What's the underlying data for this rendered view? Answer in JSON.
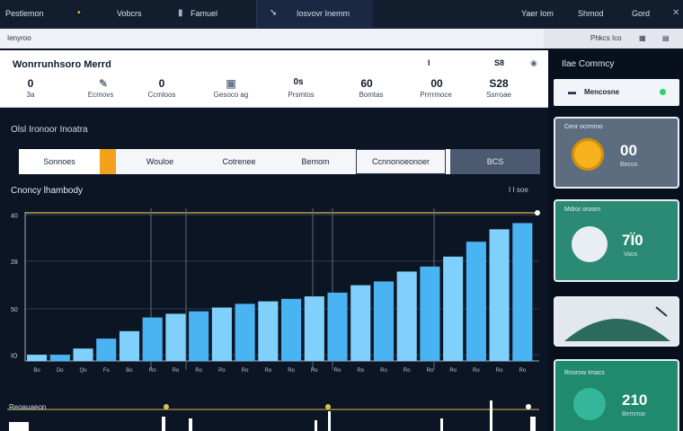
{
  "topbar": {
    "items": [
      {
        "label": "Pestlemon"
      },
      {
        "label": "Vobcrs"
      },
      {
        "label": "Famuel"
      },
      {
        "label": "Iosvovr Inemm"
      },
      {
        "label": "Yaer Iom"
      },
      {
        "label": "Shmod"
      },
      {
        "label": "Gord"
      }
    ]
  },
  "toolbar": {
    "left_label": "Ienyroo",
    "right_label": "Phkcs Ico"
  },
  "summary": {
    "title": "Wonrrunhsoro Merrd",
    "top_value_1": "I",
    "top_value_2": "S8",
    "stats": [
      {
        "value": "0",
        "label": "3a"
      },
      {
        "value": "",
        "label": "Ecmovs"
      },
      {
        "value": "0",
        "label": "Ccmloos"
      },
      {
        "value": "",
        "label": "Gesoco ag"
      },
      {
        "value": "0s",
        "label": "Prsmtos"
      },
      {
        "value": "60",
        "label": "Bomtas"
      },
      {
        "value": "00",
        "label": "Prrrrmoce"
      },
      {
        "value": "S28",
        "label": "Ssrroae"
      }
    ]
  },
  "sidebar": {
    "heading": "Ilae Commcy",
    "selector_label": "Mencosne",
    "cards": [
      {
        "title": "Cenr ocrmroo",
        "value": "00",
        "sub": "Becos"
      },
      {
        "title": "Mdror oroom",
        "value": "7Ï0",
        "sub": "Vaos"
      },
      {
        "title": "",
        "value": "",
        "sub": ""
      },
      {
        "title": "Roorow Imacs",
        "value": "210",
        "sub": "Bemmar"
      }
    ]
  },
  "main": {
    "section_title": "Olsl Ironoor Inoatra",
    "tabs": [
      {
        "label": "Sonnoes"
      },
      {
        "label": "Wouloe"
      },
      {
        "label": "Cotrenee"
      },
      {
        "label": "Bemom"
      },
      {
        "label": "Ccnnonoeonoer"
      },
      {
        "label": "BCS"
      }
    ],
    "chart_title": "Cnoncy lhambody",
    "chart_right_label": "I  I  soe"
  },
  "bottom": {
    "title": "Reoauaeon"
  },
  "chart_data": {
    "type": "bar",
    "categories": [
      "Bo",
      "Do",
      "Qo",
      "Fo",
      "Bo",
      "Ro",
      "Ro",
      "Ro",
      "Po",
      "Ro",
      "Ro",
      "Ro",
      "Ro",
      "Ro",
      "Ro",
      "Ro",
      "Ro",
      "Ro",
      "Ro",
      "Ro",
      "Ro",
      "Ro"
    ],
    "values": [
      5,
      5,
      10,
      18,
      24,
      35,
      38,
      40,
      43,
      46,
      48,
      50,
      52,
      55,
      61,
      64,
      72,
      76,
      84,
      96,
      106,
      111
    ],
    "y_ticks": [
      "40",
      "28",
      "50",
      "IO"
    ],
    "ylim": [
      0,
      120
    ],
    "colors": {
      "bar": "#4ab3f2",
      "bar_light": "#7fd0fb",
      "line": "#d8c050",
      "grid": "#2b3a52"
    }
  }
}
